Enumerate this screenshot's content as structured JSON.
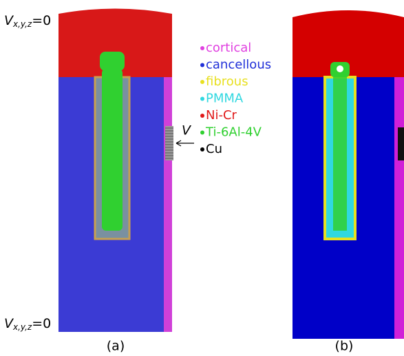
{
  "boundary_top": {
    "symbol": "V",
    "subscript": "x,y,z",
    "value": "=0"
  },
  "boundary_bottom": {
    "symbol": "V",
    "subscript": "x,y,z",
    "value": "=0"
  },
  "load_label": "V",
  "legend": [
    {
      "name": "cortical",
      "color": "#e040e0"
    },
    {
      "name": "cancellous",
      "color": "#1f2fd8"
    },
    {
      "name": "fibrous",
      "color": "#e8e020"
    },
    {
      "name": "PMMA",
      "color": "#30d8e0"
    },
    {
      "name": "Ni-Cr",
      "color": "#e01818"
    },
    {
      "name": "Ti-6Al-4V",
      "color": "#30d030"
    },
    {
      "name": "Cu",
      "color": "#000000"
    }
  ],
  "captions": [
    "(a)",
    "(b)"
  ]
}
